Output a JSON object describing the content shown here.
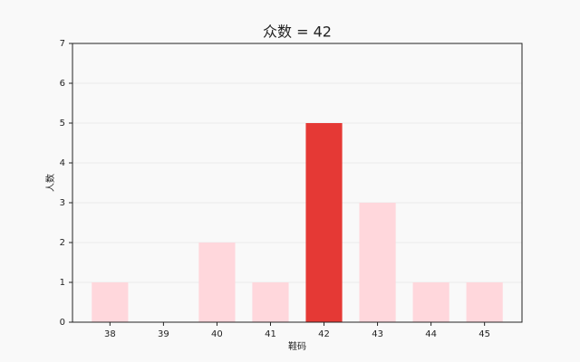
{
  "chart_data": {
    "type": "bar",
    "title": "众数 = 42",
    "x_label": "鞋码",
    "y_label": "人数",
    "categories": [
      38,
      39,
      40,
      41,
      42,
      43,
      44,
      45
    ],
    "values": [
      1,
      0,
      2,
      1,
      5,
      3,
      1,
      1
    ],
    "colors": [
      "#ffd7dc",
      "#ffd7dc",
      "#ffd7dc",
      "#ffd7dc",
      "#e53935",
      "#ffd7dc",
      "#ffd7dc",
      "#ffd7dc"
    ],
    "ylim": [
      0,
      7
    ],
    "yticks": [
      0,
      1,
      2,
      3,
      4,
      5,
      6,
      7
    ],
    "grid": true
  }
}
